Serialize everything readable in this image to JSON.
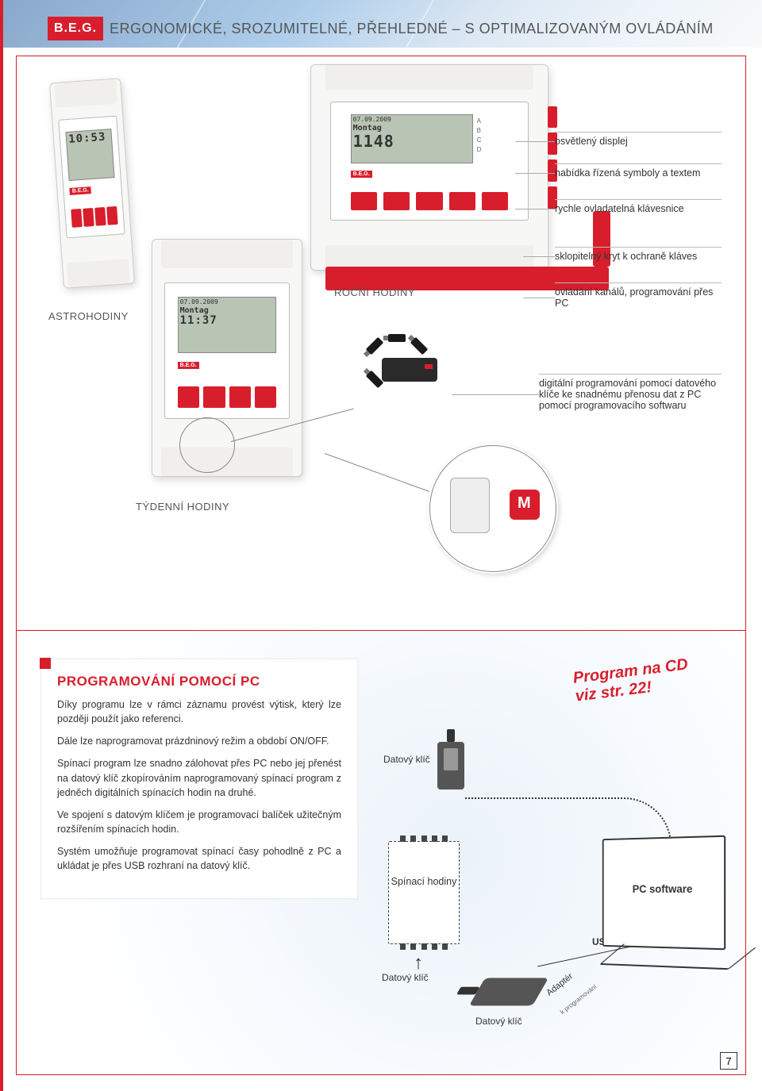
{
  "brand": "B.E.G.",
  "header_title": "ERGONOMICKÉ, SROZUMITELNÉ, PŘEHLEDNÉ – S OPTIMALIZOVANÝM OVLÁDÁNÍM",
  "colors": {
    "accent": "#d81e2c",
    "text": "#333333",
    "muted": "#888888",
    "lcd_bg": "#b8c4b4",
    "bg_radial_inner": "#eaf2f8",
    "bg_radial_outer": "#ffffff"
  },
  "product_labels": {
    "astro": "ASTROHODINY",
    "year": "ROČNÍ HODINY",
    "week": "TÝDENNÍ HODINY"
  },
  "lcd": {
    "astro": {
      "l1": "",
      "l2": "",
      "l3": "10:53"
    },
    "week": {
      "l1": "07.09.2009",
      "l2": "Montag",
      "l3": "11:37"
    },
    "year": {
      "l1": "07.09.2009",
      "l2": "Montag",
      "l3": "1148",
      "channels": [
        "A",
        "B",
        "C",
        "D"
      ]
    }
  },
  "features": {
    "f1": "osvětlený displej",
    "f2": "nabídka řízená symboly a textem",
    "f3": "rychle ovladatelná klávesnice",
    "f4": "sklopitelný kryt k ochraně kláves",
    "f5": "ovládání kanálů, programování přes PC",
    "f6": "digitální programování pomocí datového klíče ke snadnému přenosu dat z PC pomocí programovacího softwaru"
  },
  "info": {
    "title": "PROGRAMOVÁNÍ POMOCÍ PC",
    "p1": "Díky programu lze v rámci záznamu provést výtisk, který lze později použít jako referenci.",
    "p2": "Dále lze naprogramovat prázdninový režim a období ON/OFF.",
    "p3": "Spínací program lze snadno zálohovat přes PC nebo jej přenést na datový klíč zkopírováním naprogramovaný spínací program z jedněch digitálních spínacích hodin na druhé.",
    "p4": "Ve spojení s datovým klíčem je programovací balíček užitečným rozšířením spínacích hodin.",
    "p5": "Systém umožňuje programovat spínací časy pohodlně z PC a ukládat je přes USB rozhraní na datový klíč."
  },
  "sticker": {
    "line1": "Program na CD",
    "line2": "viz str. 22!"
  },
  "diagram": {
    "data_key": "Datový klíč",
    "timer_chip": "Spínací hodiny",
    "usb": "USB",
    "adapter": "Adaptér",
    "adapter_sub": "k programování",
    "pc_software": "PC software"
  },
  "page_number": "7"
}
